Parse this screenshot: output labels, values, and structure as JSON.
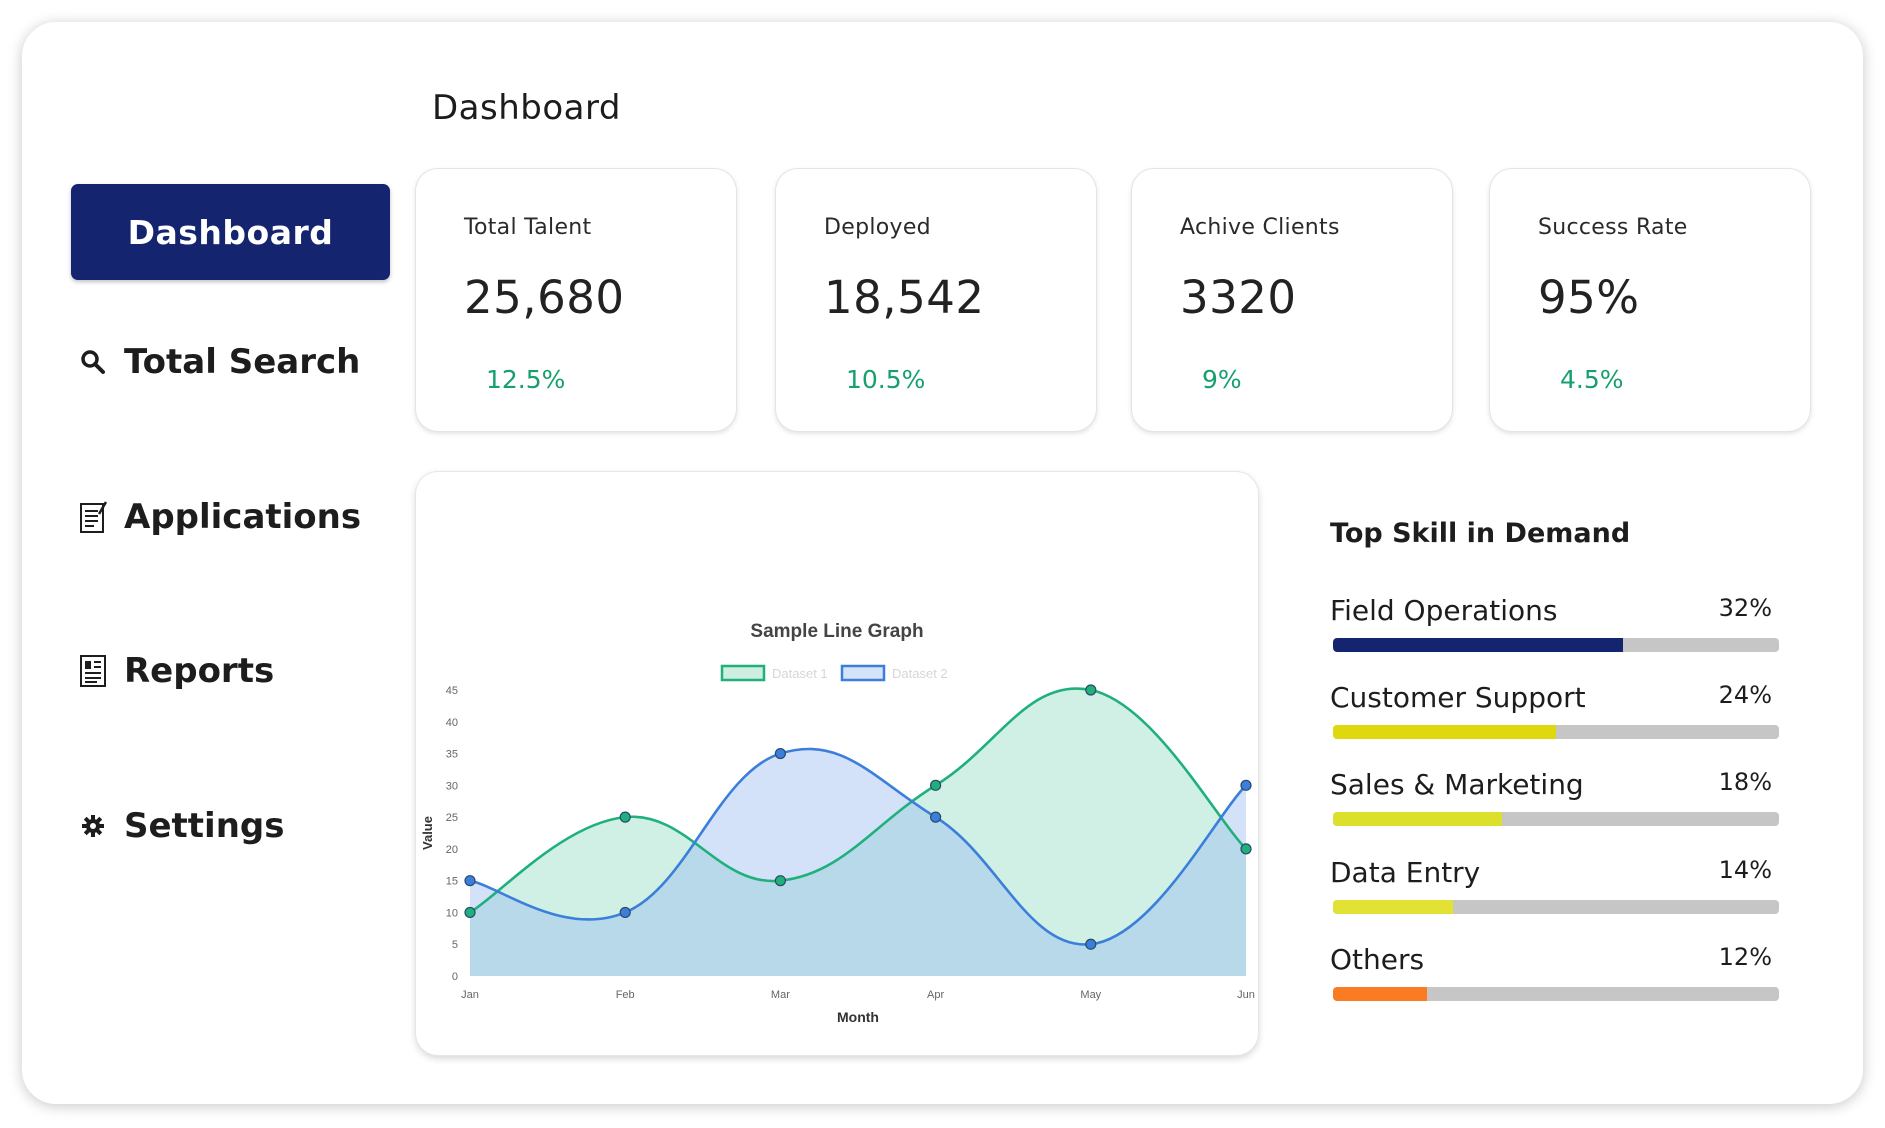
{
  "page": {
    "title": "Dashboard"
  },
  "sidebar": {
    "items": [
      {
        "label": "Dashboard",
        "icon": "none",
        "active": true
      },
      {
        "label": "Total Search",
        "icon": "search-icon"
      },
      {
        "label": "Applications",
        "icon": "applications-icon"
      },
      {
        "label": "Reports",
        "icon": "reports-icon"
      },
      {
        "label": "Settings",
        "icon": "gear-icon"
      }
    ]
  },
  "stats": [
    {
      "label": "Total Talent",
      "value": "25,680",
      "delta": "12.5%"
    },
    {
      "label": "Deployed",
      "value": "18,542",
      "delta": "10.5%"
    },
    {
      "label": "Achive Clients",
      "value": "3320",
      "delta": "9%"
    },
    {
      "label": "Success Rate",
      "value": "95%",
      "delta": "4.5%"
    }
  ],
  "colors": {
    "brand": "#14246e",
    "positive": "#17a06e",
    "dataset1": "#1fb07c",
    "dataset2": "#3b7fdb"
  },
  "chart_data": {
    "type": "line",
    "title": "Sample Line Graph",
    "xlabel": "Month",
    "ylabel": "Value",
    "categories": [
      "Jan",
      "Feb",
      "Mar",
      "Apr",
      "May",
      "Jun"
    ],
    "ylim": [
      0,
      45
    ],
    "yticks": [
      0,
      5,
      10,
      15,
      20,
      25,
      30,
      35,
      40,
      45
    ],
    "series": [
      {
        "name": "Dataset 1",
        "values": [
          10,
          25,
          15,
          30,
          45,
          20
        ],
        "color": "#1fb07c"
      },
      {
        "name": "Dataset 2",
        "values": [
          15,
          10,
          35,
          25,
          5,
          30
        ],
        "color": "#3b7fdb"
      }
    ],
    "legend": "top-center",
    "grid": false
  },
  "skills": {
    "title": "Top Skill in Demand",
    "items": [
      {
        "name": "Field Operations",
        "pct": "32%",
        "fill": 0.65,
        "color": "#14246e"
      },
      {
        "name": "Customer Support",
        "pct": "24%",
        "fill": 0.5,
        "color": "#e0d80f"
      },
      {
        "name": "Sales & Marketing",
        "pct": "18%",
        "fill": 0.38,
        "color": "#dde02a"
      },
      {
        "name": "Data Entry",
        "pct": "14%",
        "fill": 0.27,
        "color": "#e2e234"
      },
      {
        "name": "Others",
        "pct": "12%",
        "fill": 0.21,
        "color": "#fb7b22"
      }
    ]
  }
}
